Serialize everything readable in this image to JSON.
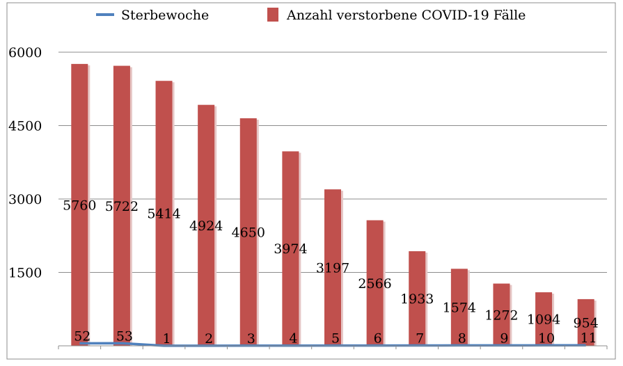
{
  "chart_data": {
    "type": "bar",
    "title": "",
    "xlabel": "",
    "ylabel": "",
    "ylim": [
      0,
      6000
    ],
    "yticks": [
      6000,
      4500,
      3000,
      1500
    ],
    "grid": true,
    "legend_position": "top",
    "categories": [
      "",
      "",
      "",
      "",
      "",
      "",
      "",
      "",
      "",
      "",
      "",
      "",
      ""
    ],
    "series": [
      {
        "name": "Anzahl verstorbene COVID-19 Fälle",
        "kind": "bar",
        "color": "#C0504D",
        "values": [
          5760,
          5722,
          5414,
          4924,
          4650,
          3974,
          3197,
          2566,
          1933,
          1574,
          1272,
          1094,
          954
        ],
        "labels": [
          "5760",
          "5722",
          "5414",
          "4924",
          "4650",
          "3974",
          "3197",
          "2566",
          "1933",
          "1574",
          "1272",
          "1094",
          "954"
        ]
      },
      {
        "name": "Sterbewoche",
        "kind": "line",
        "color": "#4F81BD",
        "values": [
          52,
          53,
          1,
          2,
          3,
          4,
          5,
          6,
          7,
          8,
          9,
          10,
          11
        ],
        "labels": [
          "52",
          "53",
          "1",
          "2",
          "3",
          "4",
          "5",
          "6",
          "7",
          "8",
          "9",
          "10",
          "11"
        ]
      }
    ],
    "ytick_labels": [
      "6000",
      "4500",
      "3000",
      "1500"
    ]
  }
}
